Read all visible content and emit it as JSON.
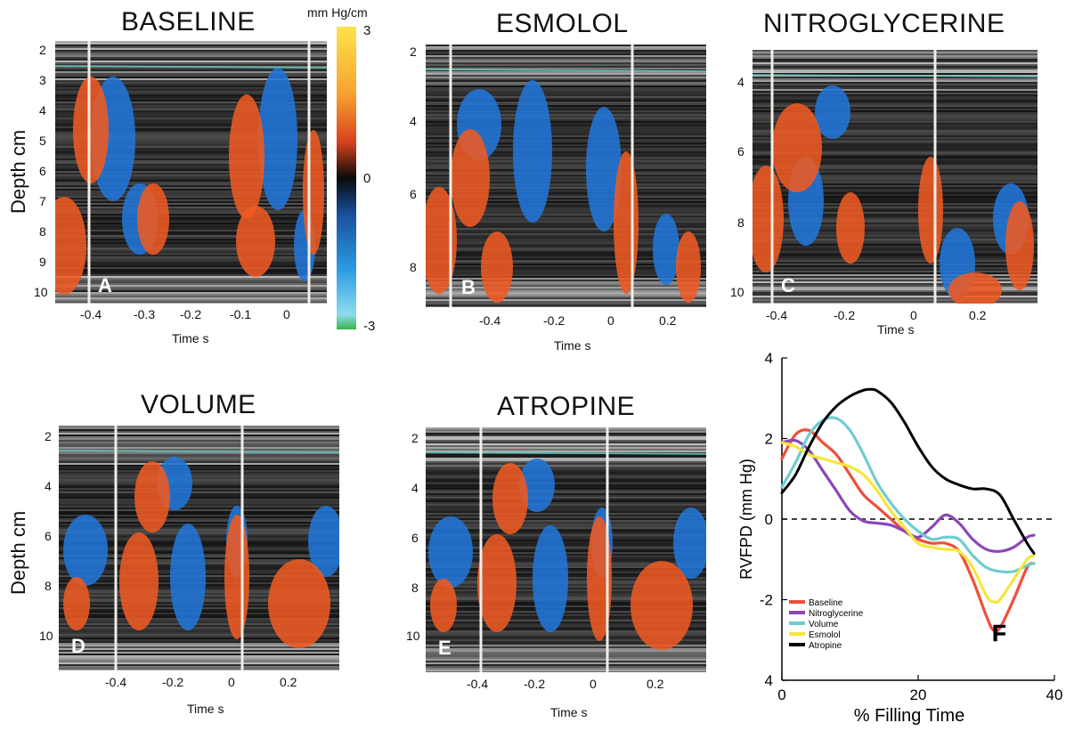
{
  "panels": [
    {
      "id": "A",
      "title": "BASELINE",
      "letter": "A",
      "ylabel": "Depth cm",
      "xlabel": "Time s",
      "yticks": [
        "2",
        "3",
        "4",
        "5",
        "6",
        "7",
        "8",
        "9",
        "10"
      ],
      "xticks": [
        "-0.4",
        "-0.3",
        "-0.2",
        "-0.1",
        "0"
      ]
    },
    {
      "id": "B",
      "title": "ESMOLOL",
      "letter": "B",
      "ylabel": "",
      "xlabel": "Time s",
      "yticks": [
        "2",
        "4",
        "6",
        "8"
      ],
      "xticks": [
        "-0.4",
        "-0.2",
        "0",
        "0.2"
      ]
    },
    {
      "id": "C",
      "title": "NITROGLYCERINE",
      "letter": "C",
      "ylabel": "",
      "xlabel": "Time s",
      "yticks": [
        "4",
        "6",
        "8",
        "10"
      ],
      "xticks": [
        "-0.4",
        "-0.2",
        "0",
        "0.2"
      ]
    },
    {
      "id": "D",
      "title": "VOLUME",
      "letter": "D",
      "ylabel": "Depth cm",
      "xlabel": "Time s",
      "yticks": [
        "2",
        "4",
        "6",
        "8",
        "10"
      ],
      "xticks": [
        "-0.4",
        "-0.2",
        "0",
        "0.2"
      ]
    },
    {
      "id": "E",
      "title": "ATROPINE",
      "letter": "E",
      "ylabel": "",
      "xlabel": "Time s",
      "yticks": [
        "2",
        "4",
        "6",
        "8",
        "10"
      ],
      "xticks": [
        "-0.4",
        "-0.2",
        "0",
        "0.2"
      ]
    }
  ],
  "colorbar": {
    "unit": "mm Hg/cm",
    "max": "3",
    "mid": "0",
    "min": "-3",
    "colors": [
      "#fde34a",
      "#f07a22",
      "#0a0a0a",
      "#1f6fd6",
      "#7fd4ee",
      "#39b54a"
    ]
  },
  "chart_data": {
    "type": "line",
    "letter": "F",
    "xlabel": "% Filling Time",
    "ylabel": "RVFPD (mm Hg)",
    "xlim": [
      0,
      40
    ],
    "ylim": [
      -4,
      4
    ],
    "xticks": [
      0,
      20,
      40
    ],
    "yticks": [
      4,
      2,
      0,
      -2,
      4
    ],
    "ytick_labels": [
      "4",
      "2",
      "0",
      "-2",
      "4"
    ],
    "zero_line": "dashed",
    "legend_position": "bottom-left",
    "series": [
      {
        "name": "Baseline",
        "color": "#f04e3a",
        "x": [
          0,
          2,
          4,
          6,
          8,
          10,
          12,
          14,
          16,
          18,
          20,
          22,
          24,
          26,
          28,
          30,
          31,
          32,
          34,
          36,
          37
        ],
        "y": [
          1.5,
          2.1,
          2.2,
          1.9,
          1.6,
          1.1,
          0.6,
          0.3,
          0.0,
          -0.3,
          -0.5,
          -0.6,
          -0.6,
          -0.8,
          -1.5,
          -2.4,
          -2.75,
          -2.7,
          -2.0,
          -1.2,
          -1.1
        ]
      },
      {
        "name": "Nitroglycerine",
        "color": "#8a48b8",
        "x": [
          0,
          2,
          4,
          6,
          8,
          10,
          12,
          14,
          16,
          18,
          20,
          22,
          24,
          26,
          28,
          30,
          32,
          34,
          36,
          37
        ],
        "y": [
          1.9,
          1.95,
          1.7,
          1.2,
          0.7,
          0.2,
          -0.05,
          -0.1,
          -0.15,
          -0.3,
          -0.45,
          -0.2,
          0.1,
          -0.1,
          -0.5,
          -0.75,
          -0.8,
          -0.7,
          -0.45,
          -0.4
        ]
      },
      {
        "name": "Volume",
        "color": "#6fcccf",
        "x": [
          0,
          2,
          4,
          6,
          8,
          10,
          12,
          14,
          16,
          18,
          20,
          22,
          24,
          26,
          28,
          30,
          32,
          34,
          36,
          37
        ],
        "y": [
          0.8,
          1.4,
          2.1,
          2.45,
          2.5,
          2.2,
          1.6,
          0.9,
          0.4,
          0.0,
          -0.3,
          -0.5,
          -0.45,
          -0.5,
          -0.9,
          -1.2,
          -1.3,
          -1.3,
          -1.15,
          -1.1
        ]
      },
      {
        "name": "Esmolol",
        "color": "#f7e63a",
        "x": [
          0,
          2,
          4,
          6,
          8,
          10,
          12,
          14,
          16,
          18,
          20,
          22,
          24,
          26,
          28,
          30,
          31,
          32,
          34,
          36,
          37
        ],
        "y": [
          1.9,
          1.8,
          1.6,
          1.5,
          1.4,
          1.3,
          1.1,
          0.7,
          0.2,
          -0.2,
          -0.6,
          -0.7,
          -0.75,
          -0.8,
          -1.2,
          -1.9,
          -2.05,
          -2.0,
          -1.5,
          -1.0,
          -0.9
        ]
      },
      {
        "name": "Atropine",
        "color": "#000000",
        "x": [
          0,
          2,
          4,
          6,
          8,
          10,
          12,
          13,
          14,
          16,
          18,
          20,
          22,
          24,
          26,
          28,
          30,
          32,
          34,
          36,
          37
        ],
        "y": [
          0.65,
          1.1,
          1.8,
          2.4,
          2.8,
          3.05,
          3.2,
          3.22,
          3.18,
          2.9,
          2.4,
          1.8,
          1.3,
          1.0,
          0.85,
          0.75,
          0.75,
          0.6,
          0.0,
          -0.6,
          -0.85
        ]
      }
    ]
  }
}
